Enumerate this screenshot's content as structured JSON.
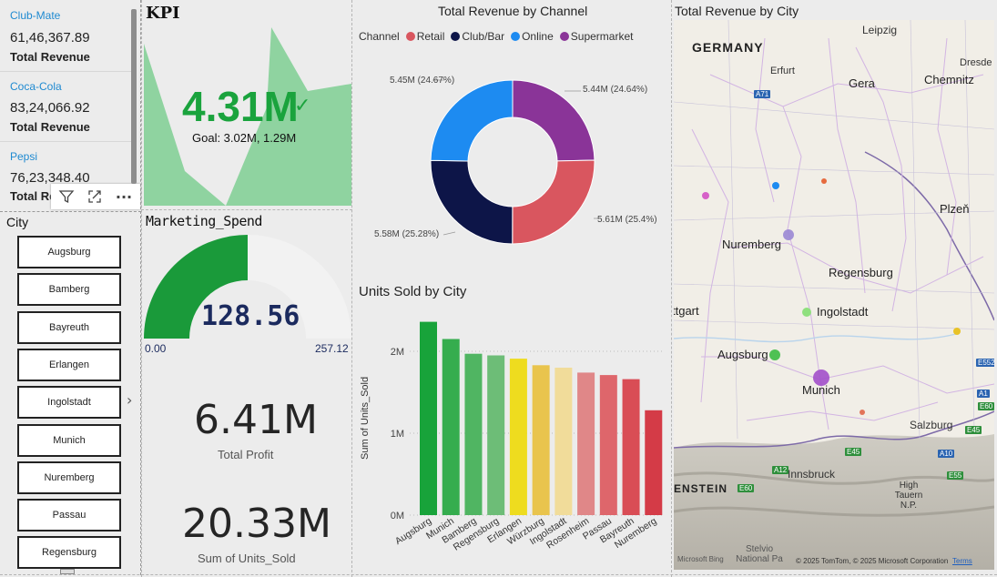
{
  "brands": [
    {
      "name": "Club-Mate",
      "value": "61,46,367.89",
      "label": "Total Revenue"
    },
    {
      "name": "Coca-Cola",
      "value": "83,24,066.92",
      "label": "Total Revenue"
    },
    {
      "name": "Pepsi",
      "value": "76,23,348.40",
      "label": "Total Revenue"
    }
  ],
  "toolbar": {
    "filter_icon": "filter-icon",
    "focus_icon": "focus-mode-icon",
    "more_label": "···"
  },
  "city_slicer": {
    "title": "City",
    "items": [
      "Augsburg",
      "Bamberg",
      "Bayreuth",
      "Erlangen",
      "Ingolstadt",
      "Munich",
      "Nuremberg",
      "Passau",
      "Regensburg"
    ],
    "chevron": "›"
  },
  "kpi": {
    "title": "KPI",
    "value": "4.31M",
    "check": "✓",
    "goal": "Goal: 3.02M, 1.29M",
    "color": "#1aa33d",
    "area_color": "#8fd3a0"
  },
  "gauge": {
    "title": "Marketing_Spend",
    "value": "128.56",
    "min": "0.00",
    "max": "257.12",
    "fill_fraction": 0.5,
    "fill_color": "#1a9a3a",
    "track_color": "#f2f2f2"
  },
  "cards": [
    {
      "value": "6.41M",
      "label": "Total Profit"
    },
    {
      "value": "20.33M",
      "label": "Sum of Units_Sold"
    }
  ],
  "donut": {
    "title": "Total Revenue by Channel",
    "legend_title": "Channel",
    "slices": [
      {
        "name": "Retail",
        "label": "5.61M (25.4%)",
        "value": 5.61,
        "color": "#d9565f"
      },
      {
        "name": "Club/Bar",
        "label": "5.58M (25.28%)",
        "value": 5.58,
        "color": "#0d1548"
      },
      {
        "name": "Online",
        "label": "5.45M (24.67%)",
        "value": 5.45,
        "color": "#1d8bf1"
      },
      {
        "name": "Supermarket",
        "label": "5.44M (24.64%)",
        "value": 5.44,
        "color": "#8a3498"
      }
    ]
  },
  "chart_data": {
    "type": "bar",
    "title": "Units Sold by City",
    "xlabel": "",
    "ylabel": "Sum of Units_Sold",
    "ylim": [
      0,
      2400000
    ],
    "yticks": [
      "0M",
      "1M",
      "2M"
    ],
    "categories": [
      "Augsburg",
      "Munich",
      "Bamberg",
      "Regensburg",
      "Erlangen",
      "Würzburg",
      "Ingolstadt",
      "Rosenheim",
      "Passau",
      "Bayreuth",
      "Nuremberg"
    ],
    "values": [
      2360000,
      2150000,
      1970000,
      1950000,
      1910000,
      1830000,
      1800000,
      1740000,
      1710000,
      1660000,
      1280000
    ],
    "colors": [
      "#18a33a",
      "#35ad4e",
      "#50b562",
      "#6dbd77",
      "#eedc1f",
      "#e9c44d",
      "#f1dc9a",
      "#e08788",
      "#de666b",
      "#d94d55",
      "#d43b47"
    ]
  },
  "map": {
    "title": "Total Revenue by City",
    "country_labels": [
      "GERMANY",
      "ENSTEIN"
    ],
    "cities": [
      "Leipzig",
      "Dresde",
      "Erfurt",
      "Gera",
      "Chemnitz",
      "Plzeň",
      "Nuremberg",
      "Regensburg",
      "ttgart",
      "Ingolstadt",
      "Augsburg",
      "Munich",
      "Salzburg",
      "Innsbruck",
      "High Tauern N.P.",
      "Stelvio National Pa"
    ],
    "road_labels": [
      "A71",
      "E552",
      "A1",
      "E60",
      "E45",
      "A12",
      "E60",
      "A10",
      "E55",
      "E45"
    ],
    "credit": "© 2025 TomTom, © 2025 Microsoft Corporation",
    "terms": "Terms",
    "logo": "Microsoft Bing"
  }
}
